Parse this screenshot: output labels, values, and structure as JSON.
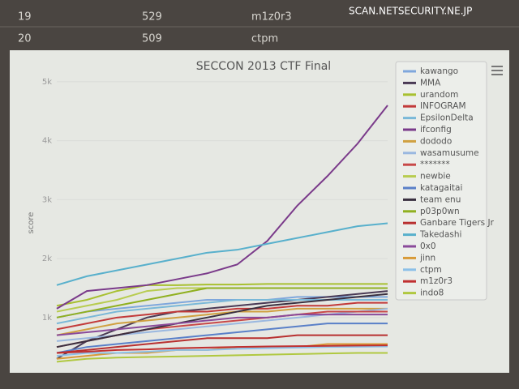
{
  "watermark": "SCAN.NETSECURITY.NE.JP",
  "table_rows": [
    [
      "19",
      "529",
      "m1z0r3"
    ],
    [
      "20",
      "509",
      "ctpm"
    ]
  ],
  "chart_data": {
    "type": "line",
    "title": "SECCON 2013 CTF Final",
    "y_label": "score",
    "ylim": [
      200,
      5150
    ],
    "yticks": [
      {
        "value": 1000,
        "label": "1k"
      },
      {
        "value": 2000,
        "label": "2k"
      },
      {
        "value": 3000,
        "label": "3k"
      },
      {
        "value": 4000,
        "label": "4k"
      },
      {
        "value": 5000,
        "label": "5k"
      }
    ],
    "categories": [
      null,
      null,
      null,
      null,
      null,
      null,
      null,
      null,
      null,
      null,
      null,
      null
    ],
    "series": [
      {
        "name": "kawango",
        "color": "#7fa7dc",
        "values": [
          1000,
          1100,
          1150,
          1200,
          1250,
          1300,
          1300,
          1300,
          1350,
          1350,
          1350,
          1350
        ]
      },
      {
        "name": "MMA",
        "color": "#4a3a55",
        "values": [
          300,
          600,
          800,
          1000,
          1100,
          1150,
          1200,
          1250,
          1300,
          1350,
          1400,
          1450
        ]
      },
      {
        "name": "urandom",
        "color": "#a8c030",
        "values": [
          1200,
          1300,
          1450,
          1550,
          1550,
          1560,
          1560,
          1570,
          1570,
          1570,
          1570,
          1570
        ]
      },
      {
        "name": "INFOGRAM",
        "color": "#c23a3a",
        "values": [
          800,
          900,
          1000,
          1050,
          1100,
          1100,
          1150,
          1150,
          1200,
          1200,
          1250,
          1250
        ]
      },
      {
        "name": "EpsilonDelta",
        "color": "#7ab8d8",
        "values": [
          900,
          1000,
          1100,
          1150,
          1200,
          1250,
          1300,
          1300,
          1300,
          1300,
          1300,
          1300
        ]
      },
      {
        "name": "ifconfig",
        "color": "#7a3a8a",
        "values": [
          1150,
          1450,
          1500,
          1550,
          1650,
          1750,
          1900,
          2300,
          2900,
          3400,
          3950,
          4600
        ]
      },
      {
        "name": "dododo",
        "color": "#d0a040",
        "values": [
          700,
          800,
          900,
          950,
          1000,
          1050,
          1100,
          1100,
          1150,
          1150,
          1150,
          1150
        ]
      },
      {
        "name": "wasamusume",
        "color": "#9ab8e0",
        "values": [
          600,
          650,
          700,
          750,
          800,
          850,
          900,
          950,
          1000,
          1050,
          1100,
          1150
        ]
      },
      {
        "name": "*******",
        "color": "#c84848",
        "values": [
          500,
          600,
          700,
          800,
          850,
          900,
          950,
          1000,
          1050,
          1100,
          1100,
          1100
        ]
      },
      {
        "name": "newbie",
        "color": "#b8cc50",
        "values": [
          1100,
          1200,
          1300,
          1450,
          1500,
          1500,
          1500,
          1500,
          1500,
          1500,
          1500,
          1500
        ]
      },
      {
        "name": "katagaitai",
        "color": "#5a80c8",
        "values": [
          400,
          500,
          550,
          600,
          650,
          700,
          750,
          800,
          850,
          900,
          900,
          900
        ]
      },
      {
        "name": "team enu",
        "color": "#3a3040",
        "values": [
          500,
          600,
          700,
          800,
          900,
          1000,
          1100,
          1200,
          1250,
          1300,
          1350,
          1400
        ]
      },
      {
        "name": "p03p0wn",
        "color": "#90b020",
        "values": [
          1000,
          1100,
          1200,
          1300,
          1400,
          1500,
          1500,
          1500,
          1500,
          1500,
          1500,
          1500
        ]
      },
      {
        "name": "Ganbare Tigers Jr",
        "color": "#b83030",
        "values": [
          400,
          450,
          500,
          550,
          600,
          650,
          650,
          650,
          700,
          700,
          700,
          700
        ]
      },
      {
        "name": "Takedashi",
        "color": "#58b0cc",
        "values": [
          1550,
          1700,
          1800,
          1900,
          2000,
          2100,
          2150,
          2250,
          2350,
          2450,
          2550,
          2600
        ]
      },
      {
        "name": "0x0",
        "color": "#8a4a9a",
        "values": [
          700,
          750,
          800,
          850,
          900,
          950,
          1000,
          1000,
          1050,
          1050,
          1050,
          1050
        ]
      },
      {
        "name": "jinn",
        "color": "#d89a38",
        "values": [
          300,
          350,
          400,
          400,
          450,
          450,
          500,
          500,
          500,
          550,
          550,
          550
        ]
      },
      {
        "name": "ctpm",
        "color": "#8cc0e8",
        "values": [
          350,
          400,
          400,
          420,
          450,
          450,
          470,
          480,
          490,
          500,
          505,
          509
        ]
      },
      {
        "name": "m1z0r3",
        "color": "#c03030",
        "values": [
          400,
          420,
          450,
          460,
          480,
          490,
          500,
          510,
          515,
          520,
          525,
          529
        ]
      },
      {
        "name": "indo8",
        "color": "#b0c840",
        "values": [
          250,
          300,
          320,
          330,
          340,
          350,
          360,
          370,
          380,
          390,
          400,
          400
        ]
      }
    ]
  }
}
